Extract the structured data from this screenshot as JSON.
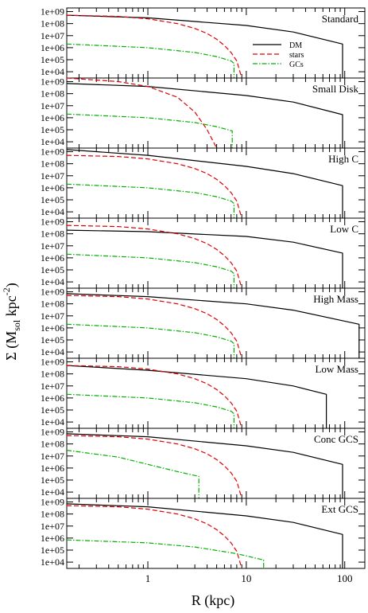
{
  "chart_data": {
    "type": "line",
    "figure": {
      "ylabel_main": "Σ (M",
      "ylabel_sub": "sol",
      "ylabel_mid": " kpc",
      "ylabel_sup": "-2",
      "ylabel_end": ")",
      "xlabel": "R (kpc)",
      "x_scale": "log",
      "y_scale": "log",
      "xlim": [
        0.15,
        160
      ],
      "ylim": [
        3000,
        2000000000
      ],
      "x_tick_labels": [
        "1",
        "10",
        "100"
      ],
      "y_tick_labels": [
        "1e+04",
        "1e+05",
        "1e+06",
        "1e+07",
        "1e+08",
        "1e+09"
      ]
    },
    "legend": {
      "placement": "inside top-right of first panel",
      "entries": [
        {
          "name": "DM",
          "color": "#000000",
          "dash": "solid"
        },
        {
          "name": "stars",
          "color": "#e00000",
          "dash": "dashed"
        },
        {
          "name": "GCs",
          "color": "#00b000",
          "dash": "dash-dot"
        }
      ]
    },
    "panels": [
      {
        "label": "Standard",
        "series": [
          {
            "name": "DM",
            "x": [
              0.15,
              1,
              10,
              30,
              95,
              95
            ],
            "y": [
              500000000,
              300000000,
              70000000,
              20000000,
              2000000,
              3000
            ]
          },
          {
            "name": "stars",
            "x": [
              0.15,
              0.5,
              1,
              2,
              3,
              4,
              5,
              6,
              7,
              8,
              9
            ],
            "y": [
              500000000,
              400000000,
              250000000,
              100000000,
              40000000,
              15000000,
              5000000,
              1500000,
              400000,
              80000,
              3000
            ]
          },
          {
            "name": "GCs",
            "x": [
              0.15,
              1,
              3,
              5,
              7,
              7.5,
              7.5
            ],
            "y": [
              2000000,
              1000000,
              400000,
              180000,
              80000,
              50000,
              3000
            ]
          }
        ]
      },
      {
        "label": "Small Disk",
        "series": [
          {
            "name": "DM",
            "x": [
              0.15,
              1,
              10,
              30,
              95,
              95
            ],
            "y": [
              700000000,
              400000000,
              70000000,
              20000000,
              1800000,
              3000
            ]
          },
          {
            "name": "stars",
            "x": [
              0.15,
              0.5,
              1,
              2,
              3,
              4,
              5
            ],
            "y": [
              2000000000,
              1000000000,
              400000000,
              50000000,
              3000000,
              100000,
              3000
            ]
          },
          {
            "name": "GCs",
            "x": [
              0.15,
              1,
              3,
              5,
              7.2,
              7.2
            ],
            "y": [
              2000000,
              1000000,
              400000,
              180000,
              80000,
              3000
            ]
          }
        ]
      },
      {
        "label": "High C",
        "series": [
          {
            "name": "DM",
            "x": [
              0.15,
              1,
              10,
              30,
              95,
              95
            ],
            "y": [
              1500000000,
              500000000,
              60000000,
              15000000,
              1500000,
              3000
            ]
          },
          {
            "name": "stars",
            "x": [
              0.15,
              0.5,
              1,
              2,
              3,
              4,
              5,
              6,
              7,
              8,
              9
            ],
            "y": [
              500000000,
              400000000,
              250000000,
              100000000,
              40000000,
              15000000,
              5000000,
              1500000,
              400000,
              80000,
              3000
            ]
          },
          {
            "name": "GCs",
            "x": [
              0.15,
              1,
              3,
              5,
              7,
              7.5,
              7.5
            ],
            "y": [
              2000000,
              1000000,
              400000,
              180000,
              80000,
              50000,
              3000
            ]
          }
        ]
      },
      {
        "label": "Low C",
        "series": [
          {
            "name": "DM",
            "x": [
              0.15,
              1,
              10,
              30,
              95,
              95
            ],
            "y": [
              200000000,
              150000000,
              60000000,
              20000000,
              2500000,
              3000
            ]
          },
          {
            "name": "stars",
            "x": [
              0.15,
              0.5,
              1,
              2,
              3,
              4,
              5,
              6,
              7,
              8,
              9
            ],
            "y": [
              500000000,
              400000000,
              250000000,
              100000000,
              40000000,
              15000000,
              5000000,
              1500000,
              400000,
              80000,
              3000
            ]
          },
          {
            "name": "GCs",
            "x": [
              0.15,
              1,
              3,
              5,
              7,
              7.5,
              7.5
            ],
            "y": [
              2000000,
              1000000,
              400000,
              180000,
              80000,
              50000,
              3000
            ]
          }
        ]
      },
      {
        "label": "High Mass",
        "series": [
          {
            "name": "DM",
            "x": [
              0.15,
              1,
              10,
              30,
              140,
              140
            ],
            "y": [
              700000000,
              400000000,
              100000000,
              30000000,
              2000000,
              3000
            ]
          },
          {
            "name": "stars",
            "x": [
              0.15,
              0.5,
              1,
              2,
              3,
              4,
              5,
              6,
              7,
              8,
              9
            ],
            "y": [
              500000000,
              400000000,
              250000000,
              100000000,
              40000000,
              15000000,
              5000000,
              1500000,
              400000,
              80000,
              3000
            ]
          },
          {
            "name": "GCs",
            "x": [
              0.15,
              1,
              3,
              5,
              7,
              7.5,
              7.5
            ],
            "y": [
              2000000,
              1000000,
              400000,
              180000,
              80000,
              50000,
              3000
            ]
          }
        ]
      },
      {
        "label": "Low Mass",
        "series": [
          {
            "name": "DM",
            "x": [
              0.15,
              1,
              10,
              30,
              65,
              65
            ],
            "y": [
              500000000,
              200000000,
              40000000,
              10000000,
              2000000,
              3000
            ]
          },
          {
            "name": "stars",
            "x": [
              0.15,
              0.5,
              1,
              2,
              3,
              4,
              5,
              6,
              7,
              8,
              9
            ],
            "y": [
              500000000,
              400000000,
              250000000,
              100000000,
              40000000,
              15000000,
              5000000,
              1500000,
              400000,
              80000,
              3000
            ]
          },
          {
            "name": "GCs",
            "x": [
              0.15,
              1,
              3,
              5,
              7,
              7.5,
              7.5
            ],
            "y": [
              2000000,
              1000000,
              400000,
              180000,
              80000,
              50000,
              3000
            ]
          }
        ]
      },
      {
        "label": "Conc GCS",
        "series": [
          {
            "name": "DM",
            "x": [
              0.15,
              1,
              10,
              30,
              95,
              95
            ],
            "y": [
              700000000,
              400000000,
              70000000,
              20000000,
              2000000,
              3000
            ]
          },
          {
            "name": "stars",
            "x": [
              0.15,
              0.5,
              1,
              2,
              3,
              4,
              5,
              6,
              7,
              8,
              9
            ],
            "y": [
              500000000,
              400000000,
              250000000,
              100000000,
              40000000,
              15000000,
              5000000,
              1500000,
              400000,
              80000,
              3000
            ]
          },
          {
            "name": "GCs",
            "x": [
              0.15,
              0.5,
              1,
              2,
              3.3,
              3.3
            ],
            "y": [
              30000000,
              8000000,
              2000000,
              500000,
              200000,
              3000
            ]
          }
        ]
      },
      {
        "label": "Ext GCS",
        "series": [
          {
            "name": "DM",
            "x": [
              0.15,
              1,
              10,
              30,
              95,
              95
            ],
            "y": [
              700000000,
              400000000,
              70000000,
              20000000,
              2000000,
              3000
            ]
          },
          {
            "name": "stars",
            "x": [
              0.15,
              0.5,
              1,
              2,
              3,
              4,
              5,
              6,
              7,
              8,
              9
            ],
            "y": [
              500000000,
              400000000,
              250000000,
              100000000,
              40000000,
              15000000,
              5000000,
              1500000,
              400000,
              80000,
              3000
            ]
          },
          {
            "name": "GCs",
            "x": [
              0.15,
              1,
              3,
              8,
              15,
              15
            ],
            "y": [
              700000,
              400000,
              180000,
              50000,
              15000,
              3000
            ]
          }
        ]
      }
    ]
  }
}
